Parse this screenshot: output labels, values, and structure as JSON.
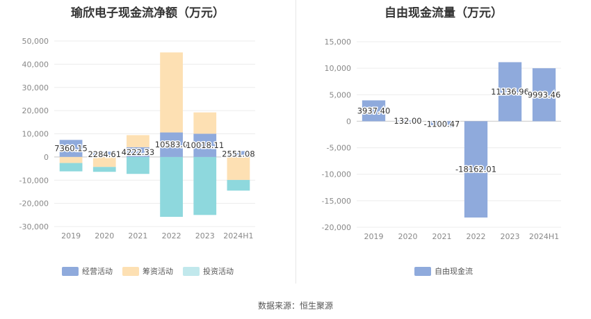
{
  "source": "数据来源：恒生聚源",
  "chart_data": [
    {
      "type": "bar",
      "stacked": true,
      "title": "瑜欣电子现金流净额（万元）",
      "categories": [
        "2019",
        "2020",
        "2021",
        "2022",
        "2023",
        "2024H1"
      ],
      "ylim": [
        -30000,
        50000
      ],
      "yticks": [
        50000,
        40000,
        30000,
        20000,
        10000,
        0,
        -10000,
        -20000,
        -30000
      ],
      "ytick_labels": [
        "50,000",
        "40,000",
        "30,000",
        "20,000",
        "10,000",
        "0",
        "-10,000",
        "-20,000",
        "-30,000"
      ],
      "grid": true,
      "legend_position": "bottom",
      "series": [
        {
          "name": "经营活动",
          "color": "#8faadc",
          "values": [
            7360.15,
            2284.61,
            4222.33,
            10583.0,
            10018.11,
            2551.08
          ],
          "labels": [
            "7360.15",
            "2284.61",
            "4222.33",
            "10583.0",
            "10018.11",
            "2551.08"
          ]
        },
        {
          "name": "筹资活动",
          "color": "#fde0b3",
          "values": [
            -2600,
            -4300,
            5200,
            34500,
            9200,
            -9900
          ]
        },
        {
          "name": "投资活动",
          "color": "#8ed8dd",
          "values": [
            -3600,
            -2100,
            -7300,
            -25800,
            -25000,
            -4600
          ]
        }
      ],
      "legend_colors": [
        "#8faadc",
        "#fde0b3",
        "#c1e8ec"
      ]
    },
    {
      "type": "bar",
      "title": "自由现金流量（万元）",
      "categories": [
        "2019",
        "2020",
        "2021",
        "2022",
        "2023",
        "2024H1"
      ],
      "ylim": [
        -20000,
        15000
      ],
      "yticks": [
        15000,
        10000,
        5000,
        0,
        -5000,
        -10000,
        -15000,
        -20000
      ],
      "ytick_labels": [
        "15,000",
        "10,000",
        "5,000",
        "0",
        "-5,000",
        "-10,000",
        "-15,000",
        "-20,000"
      ],
      "grid": true,
      "legend_position": "bottom",
      "series": [
        {
          "name": "自由现金流",
          "color": "#8faadc",
          "values": [
            3937.4,
            132.0,
            -1100.47,
            -18162.01,
            11136.96,
            9993.46
          ],
          "labels": [
            "3937.40",
            "132.00",
            "-1100.47",
            "-18162.01",
            "11136.96",
            "9993.46"
          ]
        }
      ]
    }
  ]
}
